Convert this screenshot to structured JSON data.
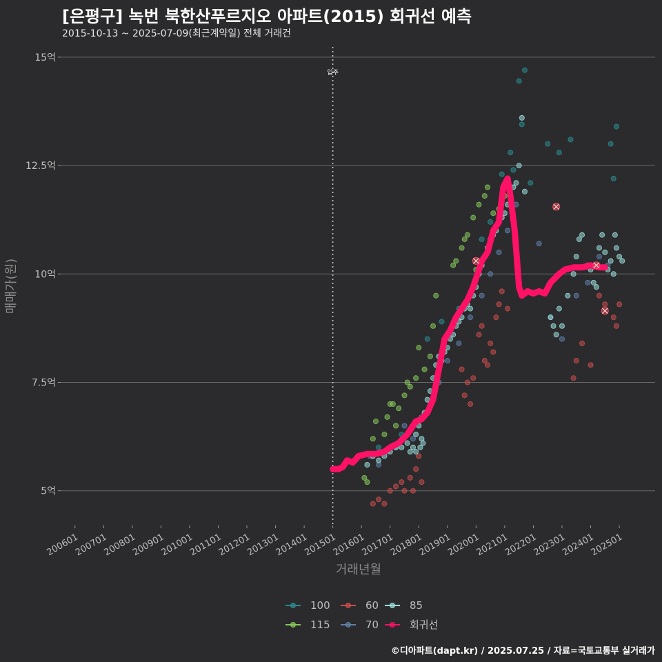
{
  "chart_data": {
    "type": "scatter",
    "title": "[은평구] 녹번 북한산푸르지오 아파트(2015) 회귀선 예측",
    "subtitle": "2015-10-13 ~ 2025-07-09(최근계약일) 전체 거래건",
    "xlabel": "거래년월",
    "ylabel": "매매가(원)",
    "caption": "©디아파트(dapt.kr) / 2025.07.25 / 자료=국토교통부 실거래가",
    "xlim": [
      2005.5,
      2026.25
    ],
    "ylim": [
      4.2,
      15.3
    ],
    "y_ticks": [
      {
        "v": 5,
        "label": "5억"
      },
      {
        "v": 7.5,
        "label": "7.5억"
      },
      {
        "v": 10,
        "label": "10억"
      },
      {
        "v": 12.5,
        "label": "12.5억"
      },
      {
        "v": 15,
        "label": "15억"
      }
    ],
    "x_ticks": [
      {
        "v": 2006,
        "label": "200601"
      },
      {
        "v": 2007,
        "label": "200701"
      },
      {
        "v": 2008,
        "label": "200801"
      },
      {
        "v": 2009,
        "label": "200901"
      },
      {
        "v": 2010,
        "label": "201001"
      },
      {
        "v": 2011,
        "label": "201101"
      },
      {
        "v": 2012,
        "label": "201201"
      },
      {
        "v": 2013,
        "label": "201301"
      },
      {
        "v": 2014,
        "label": "201401"
      },
      {
        "v": 2015,
        "label": "201501"
      },
      {
        "v": 2016,
        "label": "201601"
      },
      {
        "v": 2017,
        "label": "201701"
      },
      {
        "v": 2018,
        "label": "201801"
      },
      {
        "v": 2019,
        "label": "201901"
      },
      {
        "v": 2020,
        "label": "202001"
      },
      {
        "v": 2021,
        "label": "202101"
      },
      {
        "v": 2022,
        "label": "202201"
      },
      {
        "v": 2023,
        "label": "202301"
      },
      {
        "v": 2024,
        "label": "202401"
      },
      {
        "v": 2025,
        "label": "202501"
      }
    ],
    "grid": true,
    "legend_position": "bottom",
    "annotation": {
      "x": 2015.0,
      "label": "입주"
    },
    "colors": {
      "100": "#2b8a8e",
      "115": "#86c75a",
      "60": "#c94c4c",
      "70": "#5f7fa8",
      "85": "#9bdedb",
      "회귀선": "#ff1166"
    },
    "legend": [
      {
        "key": "100",
        "label": "100"
      },
      {
        "key": "60",
        "label": "60"
      },
      {
        "key": "85",
        "label": "85"
      },
      {
        "key": "115",
        "label": "115"
      },
      {
        "key": "70",
        "label": "70"
      },
      {
        "key": "회귀선",
        "label": "회귀선"
      }
    ],
    "series": [
      {
        "name": "115",
        "points": [
          [
            2016.4,
            6.2
          ],
          [
            2016.5,
            6.6
          ],
          [
            2016.8,
            6.3
          ],
          [
            2016.9,
            6.7
          ],
          [
            2017.0,
            7.0
          ],
          [
            2017.1,
            7.0
          ],
          [
            2017.3,
            6.9
          ],
          [
            2017.5,
            7.2
          ],
          [
            2017.6,
            7.5
          ],
          [
            2017.7,
            7.4
          ],
          [
            2017.9,
            7.6
          ],
          [
            2018.0,
            8.3
          ],
          [
            2018.2,
            7.8
          ],
          [
            2018.4,
            8.1
          ],
          [
            2018.6,
            9.5
          ],
          [
            2018.5,
            8.8
          ],
          [
            2019.2,
            10.2
          ],
          [
            2019.3,
            10.3
          ],
          [
            2019.5,
            10.6
          ],
          [
            2019.6,
            10.8
          ],
          [
            2019.7,
            10.9
          ],
          [
            2019.9,
            11.3
          ],
          [
            2020.1,
            11.6
          ],
          [
            2020.3,
            11.8
          ],
          [
            2020.4,
            12.0
          ],
          [
            2020.6,
            11.4
          ],
          [
            2020.8,
            11.5
          ],
          [
            2020.0,
            10.1
          ],
          [
            2021.0,
            11.8
          ],
          [
            2016.1,
            5.3
          ],
          [
            2016.2,
            5.2
          ],
          [
            2017.2,
            6.5
          ]
        ]
      },
      {
        "name": "100",
        "points": [
          [
            2016.6,
            6.0
          ],
          [
            2017.4,
            6.3
          ],
          [
            2018.3,
            8.5
          ],
          [
            2018.8,
            8.9
          ],
          [
            2019.4,
            9.2
          ],
          [
            2020.2,
            10.8
          ],
          [
            2020.5,
            11.2
          ],
          [
            2020.9,
            12.3
          ],
          [
            2021.3,
            12.4
          ],
          [
            2021.5,
            14.45
          ],
          [
            2021.6,
            13.45
          ],
          [
            2021.7,
            14.7
          ],
          [
            2021.9,
            12.1
          ],
          [
            2022.5,
            13.0
          ],
          [
            2022.9,
            12.8
          ],
          [
            2023.3,
            13.1
          ],
          [
            2024.7,
            13.0
          ],
          [
            2024.9,
            13.4
          ],
          [
            2024.8,
            12.2
          ],
          [
            2021.2,
            12.8
          ]
        ]
      },
      {
        "name": "60",
        "points": [
          [
            2016.4,
            4.7
          ],
          [
            2016.6,
            4.8
          ],
          [
            2016.8,
            4.7
          ],
          [
            2017.0,
            5.0
          ],
          [
            2017.2,
            5.1
          ],
          [
            2017.4,
            5.2
          ],
          [
            2017.5,
            5.0
          ],
          [
            2017.7,
            5.3
          ],
          [
            2017.9,
            5.5
          ],
          [
            2018.0,
            5.8
          ],
          [
            2017.8,
            5.0
          ],
          [
            2018.1,
            5.2
          ],
          [
            2019.6,
            7.2
          ],
          [
            2019.7,
            7.5
          ],
          [
            2019.8,
            7.0
          ],
          [
            2019.9,
            7.6
          ],
          [
            2020.1,
            8.6
          ],
          [
            2020.2,
            8.8
          ],
          [
            2020.3,
            8.0
          ],
          [
            2020.5,
            8.4
          ],
          [
            2020.6,
            8.2
          ],
          [
            2020.7,
            9.0
          ],
          [
            2020.8,
            9.3
          ],
          [
            2020.9,
            9.6
          ],
          [
            2021.1,
            9.2
          ],
          [
            2023.5,
            8.0
          ],
          [
            2023.7,
            8.4
          ],
          [
            2023.4,
            7.6
          ],
          [
            2024.0,
            7.9
          ],
          [
            2024.5,
            9.3
          ],
          [
            2024.8,
            9.0
          ],
          [
            2024.9,
            8.8
          ],
          [
            2025.0,
            9.3
          ],
          [
            2024.3,
            9.5
          ],
          [
            2019.5,
            7.8
          ],
          [
            2020.4,
            7.9
          ]
        ]
      },
      {
        "name": "70",
        "points": [
          [
            2016.3,
            5.8
          ],
          [
            2016.6,
            5.6
          ],
          [
            2016.9,
            5.9
          ],
          [
            2017.2,
            6.0
          ],
          [
            2017.5,
            6.5
          ],
          [
            2017.8,
            6.2
          ],
          [
            2018.1,
            6.7
          ],
          [
            2018.4,
            7.0
          ],
          [
            2018.7,
            7.5
          ],
          [
            2019.0,
            8.0
          ],
          [
            2019.4,
            8.4
          ],
          [
            2019.8,
            9.0
          ],
          [
            2020.2,
            9.5
          ],
          [
            2020.5,
            10.0
          ],
          [
            2020.8,
            10.5
          ],
          [
            2021.1,
            11.0
          ],
          [
            2021.4,
            11.6
          ],
          [
            2022.2,
            10.7
          ],
          [
            2022.6,
            9.0
          ],
          [
            2023.0,
            8.5
          ],
          [
            2023.5,
            9.5
          ],
          [
            2023.9,
            9.8
          ],
          [
            2024.3,
            10.4
          ],
          [
            2024.6,
            10.2
          ]
        ]
      },
      {
        "name": "85",
        "points": [
          [
            2016.2,
            5.6
          ],
          [
            2016.4,
            5.8
          ],
          [
            2016.6,
            5.7
          ],
          [
            2016.8,
            5.8
          ],
          [
            2017.0,
            5.9
          ],
          [
            2017.2,
            6.0
          ],
          [
            2017.4,
            6.0
          ],
          [
            2017.6,
            6.1
          ],
          [
            2017.8,
            6.0
          ],
          [
            2017.9,
            6.3
          ],
          [
            2018.0,
            6.5
          ],
          [
            2018.1,
            6.2
          ],
          [
            2018.2,
            6.8
          ],
          [
            2018.3,
            7.1
          ],
          [
            2018.4,
            7.3
          ],
          [
            2018.5,
            7.6
          ],
          [
            2018.6,
            7.9
          ],
          [
            2018.7,
            8.1
          ],
          [
            2018.8,
            8.0
          ],
          [
            2018.9,
            8.2
          ],
          [
            2019.0,
            8.3
          ],
          [
            2019.1,
            8.5
          ],
          [
            2019.2,
            8.6
          ],
          [
            2019.3,
            8.8
          ],
          [
            2019.4,
            8.9
          ],
          [
            2019.5,
            9.0
          ],
          [
            2019.6,
            9.2
          ],
          [
            2019.7,
            9.3
          ],
          [
            2019.8,
            9.2
          ],
          [
            2019.9,
            9.5
          ],
          [
            2020.0,
            9.7
          ],
          [
            2020.1,
            10.0
          ],
          [
            2020.2,
            10.2
          ],
          [
            2020.3,
            10.4
          ],
          [
            2020.4,
            10.6
          ],
          [
            2020.5,
            10.8
          ],
          [
            2020.6,
            10.9
          ],
          [
            2020.7,
            11.0
          ],
          [
            2020.8,
            11.2
          ],
          [
            2020.9,
            11.3
          ],
          [
            2021.0,
            11.4
          ],
          [
            2021.1,
            11.6
          ],
          [
            2021.2,
            11.8
          ],
          [
            2021.3,
            12.0
          ],
          [
            2021.4,
            12.1
          ],
          [
            2021.5,
            12.5
          ],
          [
            2021.6,
            13.6
          ],
          [
            2021.7,
            11.9
          ],
          [
            2022.6,
            9.0
          ],
          [
            2022.7,
            8.8
          ],
          [
            2022.8,
            8.6
          ],
          [
            2022.9,
            9.2
          ],
          [
            2023.0,
            8.8
          ],
          [
            2023.2,
            9.5
          ],
          [
            2023.4,
            10.0
          ],
          [
            2023.5,
            10.4
          ],
          [
            2023.6,
            10.8
          ],
          [
            2023.7,
            10.9
          ],
          [
            2023.9,
            10.2
          ],
          [
            2024.0,
            10.1
          ],
          [
            2024.1,
            9.8
          ],
          [
            2024.2,
            9.7
          ],
          [
            2024.3,
            10.6
          ],
          [
            2024.4,
            10.9
          ],
          [
            2024.5,
            10.5
          ],
          [
            2024.6,
            10.1
          ],
          [
            2024.7,
            10.3
          ],
          [
            2024.8,
            10.0
          ],
          [
            2024.9,
            10.6
          ],
          [
            2025.0,
            10.4
          ],
          [
            2025.1,
            10.3
          ],
          [
            2024.85,
            10.9
          ],
          [
            2017.9,
            5.9
          ],
          [
            2018.05,
            6.0
          ],
          [
            2017.7,
            5.9
          ],
          [
            2018.15,
            6.1
          ]
        ]
      },
      {
        "name": "highlight",
        "points": [
          [
            2020.0,
            10.3
          ],
          [
            2022.8,
            11.55
          ],
          [
            2024.2,
            10.2
          ],
          [
            2024.5,
            9.15
          ]
        ]
      }
    ],
    "regression": [
      [
        2015.0,
        5.5
      ],
      [
        2015.2,
        5.5
      ],
      [
        2015.35,
        5.55
      ],
      [
        2015.5,
        5.7
      ],
      [
        2015.7,
        5.65
      ],
      [
        2015.9,
        5.8
      ],
      [
        2016.2,
        5.85
      ],
      [
        2016.5,
        5.85
      ],
      [
        2016.8,
        5.9
      ],
      [
        2017.0,
        6.0
      ],
      [
        2017.3,
        6.1
      ],
      [
        2017.6,
        6.3
      ],
      [
        2017.9,
        6.6
      ],
      [
        2018.1,
        6.65
      ],
      [
        2018.3,
        6.8
      ],
      [
        2018.5,
        7.1
      ],
      [
        2018.7,
        7.8
      ],
      [
        2018.9,
        8.5
      ],
      [
        2019.1,
        8.7
      ],
      [
        2019.3,
        9.0
      ],
      [
        2019.5,
        9.2
      ],
      [
        2019.7,
        9.4
      ],
      [
        2019.9,
        9.7
      ],
      [
        2020.0,
        9.9
      ],
      [
        2020.2,
        10.3
      ],
      [
        2020.4,
        10.5
      ],
      [
        2020.6,
        11.0
      ],
      [
        2020.8,
        11.2
      ],
      [
        2020.95,
        12.0
      ],
      [
        2021.1,
        12.2
      ],
      [
        2021.2,
        11.8
      ],
      [
        2021.35,
        11.0
      ],
      [
        2021.5,
        9.7
      ],
      [
        2021.6,
        9.5
      ],
      [
        2021.8,
        9.6
      ],
      [
        2022.0,
        9.55
      ],
      [
        2022.2,
        9.6
      ],
      [
        2022.4,
        9.55
      ],
      [
        2022.6,
        9.8
      ],
      [
        2022.9,
        10.0
      ],
      [
        2023.1,
        10.1
      ],
      [
        2023.4,
        10.15
      ],
      [
        2023.7,
        10.15
      ],
      [
        2024.0,
        10.2
      ],
      [
        2024.3,
        10.15
      ],
      [
        2024.5,
        10.15
      ]
    ]
  }
}
